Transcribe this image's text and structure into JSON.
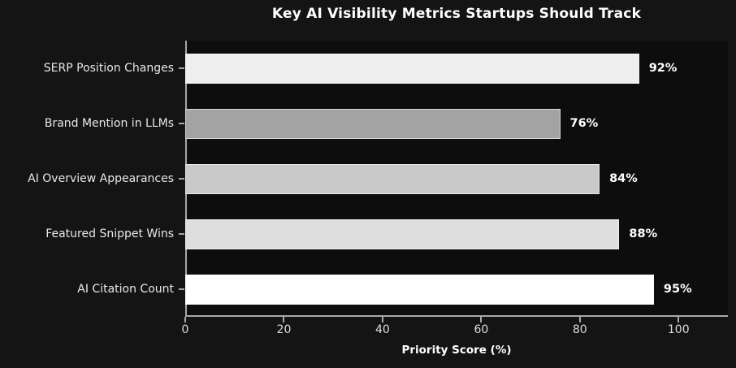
{
  "chart_data": {
    "type": "bar",
    "orientation": "horizontal",
    "title": "Key AI Visibility Metrics Startups Should Track",
    "categories": [
      "SERP Position Changes",
      "Brand Mention in LLMs",
      "AI Overview Appearances",
      "Featured Snippet Wins",
      "AI Citation Count"
    ],
    "values": [
      92,
      76,
      84,
      88,
      95
    ],
    "value_labels": [
      "92%",
      "76%",
      "84%",
      "88%",
      "95%"
    ],
    "bar_colors": [
      "#efefef",
      "#a3a3a3",
      "#c9c9c9",
      "#dedede",
      "#ffffff"
    ],
    "xlabel": "Priority Score (%)",
    "xlim": [
      0,
      110
    ],
    "x_ticks": [
      0,
      20,
      40,
      60,
      80,
      100
    ],
    "grid": false,
    "legend": null,
    "colors": {
      "figure_background": "#141414",
      "plot_background": "#0d0d0d",
      "axis": "#a8a8a8",
      "title_text": "#ffffff",
      "category_text": "#e8e8e8",
      "tick_text": "#dddddd",
      "value_text": "#ffffff"
    }
  }
}
